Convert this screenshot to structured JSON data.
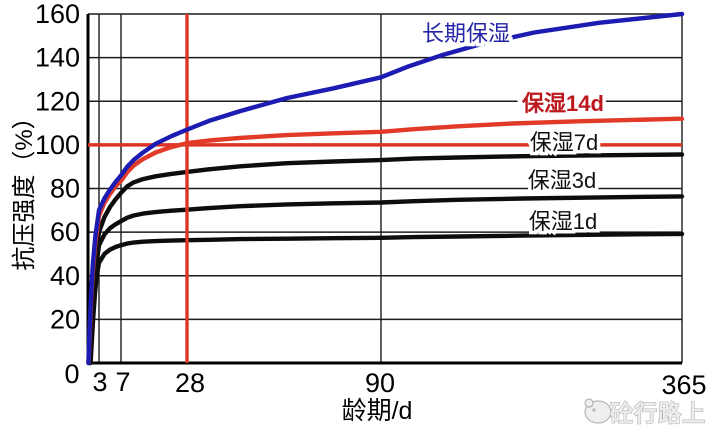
{
  "watermark": {
    "text": "砼行路上"
  },
  "chart_data": {
    "type": "line",
    "title": "",
    "xlabel": "龄期/d",
    "ylabel": "抗压强度（%）",
    "x_ticks": [
      0,
      3,
      7,
      28,
      90,
      365
    ],
    "y_ticks": [
      20,
      40,
      60,
      80,
      100,
      120,
      140,
      160
    ],
    "ylim": [
      0,
      160
    ],
    "xlim": [
      0,
      365
    ],
    "grid": true,
    "x_scale": "compressed-nonlinear-day-axis",
    "legend_position": "labels-on-curves",
    "reference_lines": {
      "horizontal_percent": 100,
      "vertical_day": 28,
      "color": "#dd3524"
    },
    "series": [
      {
        "name": "长期保湿",
        "key": "long-term-curing",
        "color": "#1c1cb2",
        "label_color": "#2525a8",
        "label_bold": false,
        "points": [
          [
            0.1,
            0
          ],
          [
            0.4,
            14
          ],
          [
            0.8,
            30
          ],
          [
            1.3,
            45
          ],
          [
            2,
            58
          ],
          [
            3,
            70
          ],
          [
            4,
            75.5
          ],
          [
            5,
            79.5
          ],
          [
            6,
            83
          ],
          [
            7,
            86
          ],
          [
            9,
            90
          ],
          [
            11,
            93
          ],
          [
            14,
            96.5
          ],
          [
            18,
            100.5
          ],
          [
            23,
            104
          ],
          [
            28,
            107
          ],
          [
            35,
            111
          ],
          [
            45,
            115.5
          ],
          [
            60,
            121.5
          ],
          [
            75,
            126
          ],
          [
            90,
            131
          ],
          [
            115,
            136
          ],
          [
            145,
            141
          ],
          [
            180,
            146
          ],
          [
            230,
            151.5
          ],
          [
            290,
            156
          ],
          [
            365,
            160
          ]
        ]
      },
      {
        "name": "保湿14d",
        "key": "curing-14d",
        "color": "#e23a28",
        "label_color": "#bd181d",
        "label_bold": true,
        "points": [
          [
            0.15,
            0
          ],
          [
            0.45,
            13
          ],
          [
            0.85,
            29
          ],
          [
            1.35,
            43
          ],
          [
            2,
            55
          ],
          [
            3,
            67.5
          ],
          [
            4,
            73.5
          ],
          [
            5,
            77.5
          ],
          [
            6,
            81
          ],
          [
            7,
            83.5
          ],
          [
            9,
            87.5
          ],
          [
            11,
            90.5
          ],
          [
            14,
            93.5
          ],
          [
            18,
            96.5
          ],
          [
            23,
            99
          ],
          [
            28,
            100.8
          ],
          [
            35,
            102
          ],
          [
            45,
            103.2
          ],
          [
            60,
            104.5
          ],
          [
            75,
            105.3
          ],
          [
            90,
            106
          ],
          [
            120,
            107.2
          ],
          [
            160,
            108.5
          ],
          [
            210,
            109.8
          ],
          [
            270,
            110.8
          ],
          [
            365,
            112
          ]
        ]
      },
      {
        "name": "保湿7d",
        "key": "curing-7d",
        "color": "#0d0d0d",
        "label_color": "#111111",
        "label_bold": false,
        "points": [
          [
            0.4,
            0
          ],
          [
            0.7,
            12
          ],
          [
            1.1,
            26
          ],
          [
            1.6,
            40
          ],
          [
            2.2,
            50
          ],
          [
            3,
            60
          ],
          [
            4,
            67
          ],
          [
            5,
            71.5
          ],
          [
            6,
            75
          ],
          [
            7,
            78
          ],
          [
            9,
            81
          ],
          [
            11,
            82.8
          ],
          [
            14,
            84.3
          ],
          [
            18,
            85.6
          ],
          [
            23,
            86.7
          ],
          [
            28,
            87.6
          ],
          [
            35,
            88.8
          ],
          [
            45,
            90.2
          ],
          [
            60,
            91.6
          ],
          [
            75,
            92.4
          ],
          [
            90,
            93
          ],
          [
            120,
            93.7
          ],
          [
            160,
            94.2
          ],
          [
            220,
            94.8
          ],
          [
            290,
            95.2
          ],
          [
            365,
            95.6
          ]
        ]
      },
      {
        "name": "保湿3d",
        "key": "curing-3d",
        "color": "#0d0d0d",
        "label_color": "#111111",
        "label_bold": false,
        "points": [
          [
            0.55,
            0
          ],
          [
            0.85,
            10
          ],
          [
            1.25,
            22
          ],
          [
            1.7,
            34
          ],
          [
            2.2,
            44
          ],
          [
            3,
            54
          ],
          [
            4,
            59
          ],
          [
            5,
            61.8
          ],
          [
            6,
            63.6
          ],
          [
            7,
            65
          ],
          [
            9,
            66.6
          ],
          [
            11,
            67.6
          ],
          [
            14,
            68.5
          ],
          [
            18,
            69.2
          ],
          [
            23,
            69.8
          ],
          [
            28,
            70.3
          ],
          [
            35,
            71
          ],
          [
            45,
            71.9
          ],
          [
            60,
            72.7
          ],
          [
            75,
            73.2
          ],
          [
            90,
            73.6
          ],
          [
            120,
            74.2
          ],
          [
            160,
            74.8
          ],
          [
            220,
            75.4
          ],
          [
            290,
            75.9
          ],
          [
            365,
            76.4
          ]
        ]
      },
      {
        "name": "保湿1d",
        "key": "curing-1d",
        "color": "#0d0d0d",
        "label_color": "#111111",
        "label_bold": false,
        "points": [
          [
            0.7,
            0
          ],
          [
            1,
            9
          ],
          [
            1.4,
            20
          ],
          [
            1.9,
            32
          ],
          [
            2.4,
            40
          ],
          [
            3,
            46
          ],
          [
            4,
            50
          ],
          [
            5,
            52
          ],
          [
            6,
            53.2
          ],
          [
            7,
            54
          ],
          [
            9,
            54.8
          ],
          [
            11,
            55.2
          ],
          [
            14,
            55.6
          ],
          [
            18,
            55.9
          ],
          [
            23,
            56.1
          ],
          [
            28,
            56.3
          ],
          [
            35,
            56.5
          ],
          [
            45,
            56.8
          ],
          [
            60,
            57
          ],
          [
            75,
            57.2
          ],
          [
            90,
            57.4
          ],
          [
            120,
            57.7
          ],
          [
            160,
            58
          ],
          [
            220,
            58.4
          ],
          [
            290,
            58.8
          ],
          [
            365,
            59.2
          ]
        ]
      }
    ]
  }
}
